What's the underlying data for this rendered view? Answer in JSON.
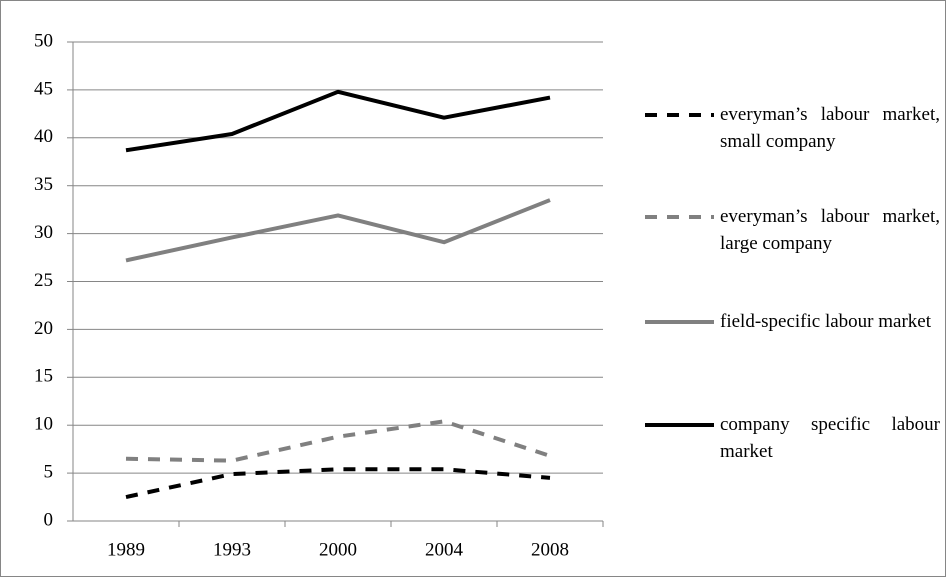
{
  "chart_data": {
    "type": "line",
    "categories": [
      "1989",
      "1993",
      "2000",
      "2004",
      "2008"
    ],
    "series": [
      {
        "name": "everyman’s labour market, small company",
        "color": "#000000",
        "dashed": true,
        "values": [
          2.5,
          4.9,
          5.4,
          5.4,
          4.5
        ]
      },
      {
        "name": "everyman’s labour market, large company",
        "color": "#808080",
        "dashed": true,
        "values": [
          6.5,
          6.3,
          8.8,
          10.4,
          6.8
        ]
      },
      {
        "name": "field-specific labour market",
        "color": "#808080",
        "dashed": false,
        "values": [
          27.2,
          29.6,
          31.9,
          29.1,
          33.5
        ]
      },
      {
        "name": "company specific labour market",
        "color": "#000000",
        "dashed": false,
        "values": [
          38.7,
          40.4,
          44.8,
          42.1,
          44.2
        ]
      }
    ],
    "ylim": [
      0,
      50
    ],
    "yticks": [
      0,
      5,
      10,
      15,
      20,
      25,
      30,
      35,
      40,
      45,
      50
    ],
    "grid": true,
    "legend": "right"
  }
}
